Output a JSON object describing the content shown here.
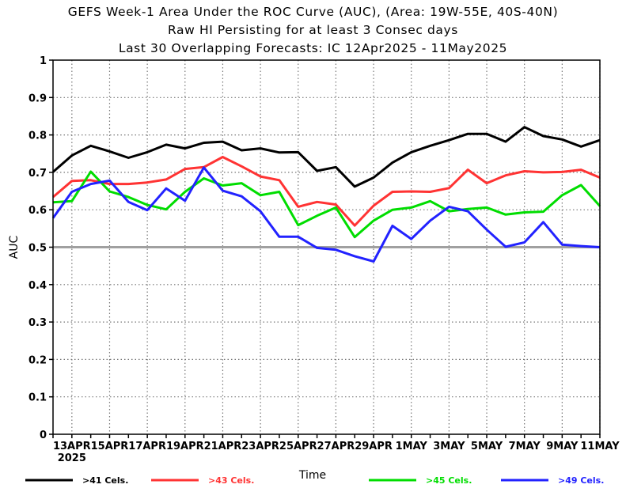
{
  "titles": {
    "line1": "GEFS Week-1 Area Under the ROC Curve (AUC), (Area: 19W-55E, 40S-40N)",
    "line2": "Raw HI Persisting for at least 3 Consec days",
    "line3": "Last 30 Overlapping Forecasts: IC 12Apr2025 - 11May2025"
  },
  "chart_data": {
    "type": "line",
    "xlabel": "Time",
    "ylabel": "AUC",
    "ylim": [
      0,
      1
    ],
    "yticks": [
      0,
      0.1,
      0.2,
      0.3,
      0.4,
      0.5,
      0.6,
      0.7,
      0.8,
      0.9,
      1
    ],
    "ytick_labels": [
      "0",
      "0.1",
      "0.2",
      "0.3",
      "0.4",
      "0.5",
      "0.6",
      "0.7",
      "0.8",
      "0.9",
      "1"
    ],
    "x": [
      "12APR",
      "13APR",
      "14APR",
      "15APR",
      "16APR",
      "17APR",
      "18APR",
      "19APR",
      "20APR",
      "21APR",
      "22APR",
      "23APR",
      "24APR",
      "25APR",
      "26APR",
      "27APR",
      "28APR",
      "29APR",
      "30APR",
      "1MAY",
      "2MAY",
      "3MAY",
      "4MAY",
      "5MAY",
      "6MAY",
      "7MAY",
      "8MAY",
      "9MAY",
      "10MAY",
      "11MAY"
    ],
    "xtick_labels": [
      "13APR",
      "15APR",
      "17APR",
      "19APR",
      "21APR",
      "23APR",
      "25APR",
      "27APR",
      "29APR",
      "1MAY",
      "3MAY",
      "5MAY",
      "7MAY",
      "9MAY",
      "11MAY"
    ],
    "xtick_year": "2025",
    "reference_line": {
      "y": 0.5,
      "color": "#a0a0a0"
    },
    "grid": true,
    "legend_position": "bottom",
    "series": [
      {
        "name": ">41 Cels.",
        "color": "#000000",
        "values": [
          0.701,
          0.745,
          0.771,
          0.756,
          0.739,
          0.754,
          0.774,
          0.764,
          0.779,
          0.782,
          0.759,
          0.764,
          0.753,
          0.754,
          0.704,
          0.714,
          0.662,
          0.686,
          0.726,
          0.754,
          0.771,
          0.786,
          0.803,
          0.803,
          0.782,
          0.821,
          0.797,
          0.788,
          0.769,
          0.786
        ]
      },
      {
        "name": ">43 Cels.",
        "color": "#ff3333",
        "values": [
          0.634,
          0.677,
          0.679,
          0.669,
          0.669,
          0.673,
          0.681,
          0.709,
          0.714,
          0.741,
          0.716,
          0.689,
          0.679,
          0.608,
          0.621,
          0.614,
          0.558,
          0.611,
          0.648,
          0.649,
          0.648,
          0.658,
          0.707,
          0.671,
          0.692,
          0.703,
          0.7,
          0.701,
          0.707,
          0.686
        ]
      },
      {
        "name": ">45 Cels.",
        "color": "#00dd00",
        "values": [
          0.62,
          0.623,
          0.702,
          0.649,
          0.634,
          0.613,
          0.601,
          0.648,
          0.684,
          0.665,
          0.671,
          0.639,
          0.648,
          0.559,
          0.584,
          0.606,
          0.527,
          0.571,
          0.6,
          0.606,
          0.623,
          0.596,
          0.602,
          0.606,
          0.587,
          0.593,
          0.595,
          0.639,
          0.666,
          0.61
        ]
      },
      {
        "name": ">49 Cels.",
        "color": "#2222ff",
        "values": [
          0.578,
          0.648,
          0.669,
          0.678,
          0.621,
          0.599,
          0.657,
          0.624,
          0.713,
          0.651,
          0.636,
          0.596,
          0.528,
          0.528,
          0.498,
          0.493,
          0.476,
          0.462,
          0.557,
          0.522,
          0.571,
          0.608,
          0.596,
          0.547,
          0.501,
          0.513,
          0.567,
          0.507,
          0.503,
          0.5
        ]
      }
    ]
  }
}
